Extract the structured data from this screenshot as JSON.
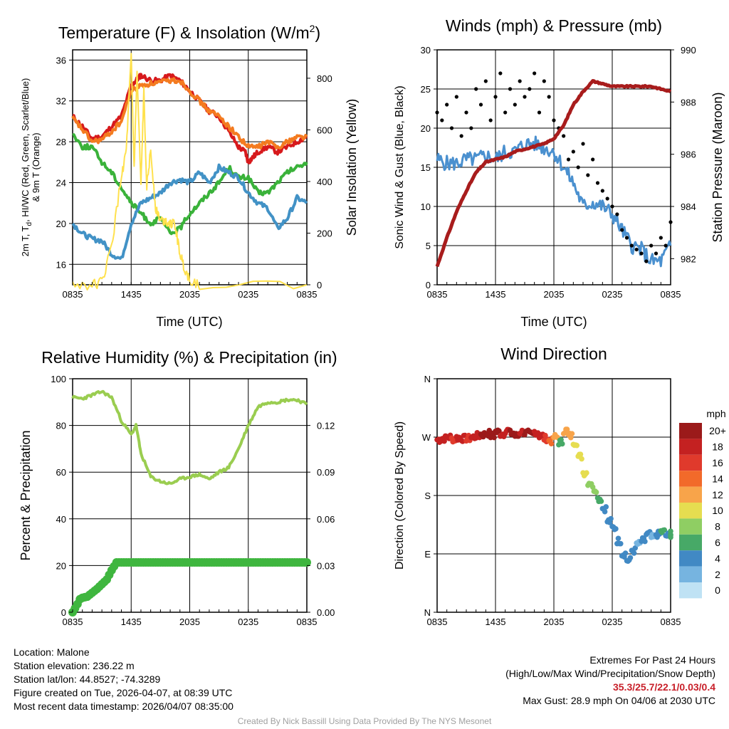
{
  "chart_data": [
    {
      "id": "temp",
      "type": "line",
      "title": "Temperature (F) & Insolation (W/m",
      "title_sup": "2",
      "title_end": ")",
      "xlabel": "Time (UTC)",
      "ylabel": [
        "2m T, T",
        "d",
        ", HI/WC (Red, Green, Scarlet/Blue)",
        "& 9m T (Orange)"
      ],
      "y2label": "Solar Insolation (Yellow)",
      "xticks": [
        "0835",
        "1435",
        "2035",
        "0235",
        "0835"
      ],
      "xlim": [
        0,
        24
      ],
      "ylim": [
        14,
        37
      ],
      "yticks": [
        16,
        20,
        24,
        28,
        32,
        36
      ],
      "y2lim": [
        0,
        910
      ],
      "y2ticks": [
        0,
        200,
        400,
        600,
        800
      ],
      "series": [
        {
          "name": "2m Temperature",
          "color": "#d7191c",
          "axis": "left",
          "x": [
            0,
            1,
            2,
            3,
            4,
            5,
            6,
            6.5,
            7,
            8,
            9,
            10,
            11,
            12,
            13,
            14,
            15,
            16,
            17,
            17.7,
            18,
            18.5,
            19,
            20,
            21,
            22,
            23,
            24
          ],
          "y": [
            30.5,
            29.5,
            28.3,
            28.5,
            29.5,
            30.5,
            33.5,
            34,
            34.5,
            34,
            34,
            34.5,
            34,
            33,
            32,
            31,
            30.5,
            29,
            27.5,
            27,
            26,
            26.5,
            27,
            27.5,
            27,
            27.5,
            28,
            28.5
          ]
        },
        {
          "name": "9m Temperature",
          "color": "#f47b20",
          "axis": "left",
          "x": [
            0,
            1,
            2,
            3,
            4,
            5,
            6,
            7,
            8,
            9,
            10,
            11,
            12,
            13,
            14,
            15,
            16,
            17,
            18,
            19,
            20,
            21,
            22,
            23,
            24
          ],
          "y": [
            30.3,
            29.2,
            28,
            28.2,
            29,
            30,
            33,
            33.5,
            33.7,
            33.8,
            34,
            34,
            33,
            32,
            31,
            30.5,
            29.5,
            28.5,
            27.5,
            27.5,
            28,
            27.5,
            28,
            28.5,
            28.5
          ]
        },
        {
          "name": "Dewpoint",
          "color": "#3ab23a",
          "axis": "left",
          "x": [
            0,
            1,
            2,
            3,
            4,
            5,
            6,
            7,
            8,
            9,
            10,
            11,
            12,
            13,
            14,
            15,
            16,
            17,
            18,
            19,
            20,
            21,
            22,
            23,
            24
          ],
          "y": [
            28.8,
            27.5,
            27.5,
            26,
            25,
            23.5,
            22,
            21,
            20,
            20.5,
            19,
            19.5,
            21,
            22,
            23,
            24,
            25.5,
            24.5,
            24.5,
            23,
            23,
            24,
            25,
            25.5,
            26
          ]
        },
        {
          "name": "Heat Index / Wind Chill",
          "color": "#4292c6",
          "axis": "left",
          "x": [
            0,
            1,
            2,
            3,
            4,
            5,
            6,
            7,
            8,
            9,
            10,
            11,
            12,
            13,
            14,
            15,
            16,
            17,
            18,
            19,
            20,
            21,
            22,
            23,
            24
          ],
          "y": [
            20,
            19,
            18.5,
            18.3,
            17,
            16.5,
            20,
            22,
            22.5,
            23,
            24,
            24.3,
            24,
            25,
            24,
            25.5,
            25,
            24.5,
            23,
            22,
            21.5,
            19.5,
            20.5,
            22.5,
            22
          ]
        },
        {
          "name": "Solar Insolation",
          "color": "#ffe14d",
          "axis": "right",
          "x": [
            0,
            2,
            3,
            4,
            5,
            5.5,
            6,
            6.3,
            6.6,
            7,
            7.3,
            7.6,
            8,
            8.5,
            9,
            9.5,
            10,
            10.5,
            11,
            11.5,
            12,
            13,
            24
          ],
          "y": [
            0,
            0,
            10,
            150,
            420,
            520,
            880,
            450,
            820,
            380,
            750,
            380,
            520,
            300,
            250,
            250,
            240,
            230,
            120,
            60,
            20,
            0,
            0
          ]
        }
      ]
    },
    {
      "id": "wind",
      "type": "line",
      "title": "Winds (mph) & Pressure (mb)",
      "xlabel": "Time (UTC)",
      "ylabel": "Sonic Wind & Gust (Blue, Black)",
      "y2label": "Station Pressure (Maroon)",
      "xticks": [
        "0835",
        "1435",
        "2035",
        "0235",
        "0835"
      ],
      "xlim": [
        0,
        24
      ],
      "ylim": [
        0,
        30
      ],
      "yticks": [
        0,
        5,
        10,
        15,
        20,
        25,
        30
      ],
      "y2lim": [
        981,
        990
      ],
      "y2ticks": [
        982,
        984,
        986,
        988,
        990
      ],
      "series": [
        {
          "name": "Sonic Wind",
          "color": "#4a90cf",
          "axis": "left",
          "type": "line",
          "x": [
            0,
            1,
            2,
            3,
            4,
            5,
            6,
            7,
            8,
            9,
            10,
            11,
            12,
            13,
            14,
            15,
            16,
            17,
            18,
            19,
            20,
            21,
            22,
            23,
            24
          ],
          "y": [
            16,
            15.5,
            15.5,
            16,
            16,
            16.5,
            16,
            17,
            17,
            18,
            18,
            17.5,
            17,
            15,
            13,
            10,
            10.5,
            10,
            9,
            7,
            5,
            4.5,
            3,
            3,
            5
          ]
        },
        {
          "name": "Gust",
          "color": "#000000",
          "axis": "left",
          "type": "scatter",
          "x": [
            0,
            0.5,
            1,
            1.5,
            2,
            2.5,
            3,
            3.5,
            4,
            4.5,
            5,
            5.5,
            6,
            6.5,
            7,
            7.5,
            8,
            8.5,
            9,
            9.5,
            10,
            10.5,
            11,
            11.5,
            12,
            12.5,
            13,
            13.5,
            14,
            14.5,
            15,
            15.5,
            16,
            16.5,
            17,
            17.5,
            18,
            18.5,
            19,
            19.5,
            20,
            20.5,
            21,
            21.5,
            22,
            22.5,
            23,
            23.5,
            24
          ],
          "y": [
            22,
            21,
            23,
            20,
            24,
            19,
            22,
            20,
            25,
            23,
            26,
            21,
            24,
            27,
            22,
            25,
            23,
            26,
            24,
            25,
            27,
            22,
            26,
            24,
            21,
            20,
            19,
            16,
            17,
            15,
            18,
            14,
            16,
            13,
            12,
            11,
            10,
            9,
            7,
            6,
            5,
            4.5,
            4,
            3,
            5,
            4,
            6,
            5,
            8
          ]
        },
        {
          "name": "Station Pressure",
          "color": "#a81c1c",
          "axis": "right",
          "type": "line",
          "x": [
            0,
            1,
            2,
            3,
            4,
            5,
            6,
            7,
            8,
            9,
            10,
            11,
            12,
            13,
            14,
            15,
            16,
            17,
            18,
            19,
            20,
            21,
            22,
            23,
            24
          ],
          "y": [
            981.7,
            982.8,
            983.8,
            984.6,
            985.3,
            985.7,
            985.8,
            985.9,
            986.1,
            986.2,
            986.3,
            986.4,
            986.6,
            987.1,
            987.9,
            988.4,
            988.8,
            988.7,
            988.6,
            988.6,
            988.6,
            988.6,
            988.6,
            988.5,
            988.4
          ]
        }
      ]
    },
    {
      "id": "rh",
      "type": "line",
      "title": "Relative Humidity (%) & Precipitation (in)",
      "ylabel": "Percent & Precipitation",
      "xticks": [
        "0835",
        "1435",
        "2035",
        "0235",
        "0835"
      ],
      "xlim": [
        0,
        24
      ],
      "ylim": [
        0,
        100
      ],
      "yticks": [
        0,
        20,
        40,
        60,
        80,
        100
      ],
      "y2lim": [
        0,
        0.15
      ],
      "y2ticks": [
        "0.00",
        "0.03",
        "0.06",
        "0.09",
        "0.12"
      ],
      "series": [
        {
          "name": "Relative Humidity",
          "color": "#9acd50",
          "axis": "left",
          "x": [
            0,
            1,
            2,
            3,
            4,
            5,
            6,
            6.5,
            7,
            8,
            9,
            10,
            11,
            12,
            13,
            14,
            15,
            16,
            17,
            18,
            19,
            20,
            21,
            22,
            23,
            24
          ],
          "y": [
            92,
            91.5,
            93,
            94.5,
            92,
            82,
            76,
            80,
            68,
            58,
            56,
            55,
            57,
            58,
            59,
            57,
            60,
            62,
            70,
            80,
            88,
            90,
            90,
            91,
            91,
            89
          ]
        },
        {
          "name": "Precipitation",
          "color": "#3fb63f",
          "axis": "right",
          "x": [
            0,
            0.4,
            0.8,
            1.5,
            2.5,
            3,
            3.5,
            4,
            4.5,
            24
          ],
          "y": [
            0,
            0.004,
            0.009,
            0.01,
            0.015,
            0.018,
            0.021,
            0.027,
            0.032,
            0.032
          ]
        }
      ]
    },
    {
      "id": "dir",
      "type": "scatter",
      "title": "Wind Direction",
      "ylabel": "Direction (Colored By Speed)",
      "xticks": [
        "0835",
        "1435",
        "2035",
        "0235",
        "0835"
      ],
      "xlim": [
        0,
        24
      ],
      "ylim": [
        0,
        360
      ],
      "yticks": [
        "N",
        "E",
        "S",
        "W",
        "N"
      ],
      "ytick_values": [
        0,
        90,
        180,
        270,
        360
      ],
      "colorbar": {
        "title": "mph",
        "labels": [
          "20+",
          "18",
          "16",
          "14",
          "12",
          "10",
          "8",
          "6",
          "4",
          "2",
          "0"
        ],
        "colors": [
          "#9b1a1a",
          "#c42121",
          "#e03a2c",
          "#f26a2a",
          "#f8a44a",
          "#e6dd50",
          "#8fce63",
          "#47a967",
          "#4189c4",
          "#76b4e0",
          "#bfe2f4"
        ]
      },
      "points": [
        {
          "x": 0,
          "dir": 266,
          "speed": 17
        },
        {
          "x": 0.5,
          "dir": 268,
          "speed": 18
        },
        {
          "x": 1,
          "dir": 270,
          "speed": 17
        },
        {
          "x": 1.5,
          "dir": 267,
          "speed": 16
        },
        {
          "x": 2,
          "dir": 269,
          "speed": 18
        },
        {
          "x": 2.5,
          "dir": 268,
          "speed": 17
        },
        {
          "x": 3,
          "dir": 268,
          "speed": 16
        },
        {
          "x": 3.5,
          "dir": 270,
          "speed": 18
        },
        {
          "x": 4,
          "dir": 272,
          "speed": 17
        },
        {
          "x": 4.5,
          "dir": 274,
          "speed": 19
        },
        {
          "x": 5,
          "dir": 276,
          "speed": 20
        },
        {
          "x": 5.5,
          "dir": 272,
          "speed": 19
        },
        {
          "x": 6,
          "dir": 278,
          "speed": 20
        },
        {
          "x": 6.5,
          "dir": 275,
          "speed": 18
        },
        {
          "x": 7,
          "dir": 280,
          "speed": 17
        },
        {
          "x": 7.5,
          "dir": 276,
          "speed": 19
        },
        {
          "x": 8,
          "dir": 272,
          "speed": 20
        },
        {
          "x": 8.5,
          "dir": 278,
          "speed": 18
        },
        {
          "x": 9,
          "dir": 276,
          "speed": 19
        },
        {
          "x": 9.5,
          "dir": 274,
          "speed": 20
        },
        {
          "x": 10,
          "dir": 278,
          "speed": 18
        },
        {
          "x": 10.5,
          "dir": 272,
          "speed": 17
        },
        {
          "x": 11,
          "dir": 268,
          "speed": 16
        },
        {
          "x": 11.5,
          "dir": 264,
          "speed": 13
        },
        {
          "x": 12,
          "dir": 270,
          "speed": 12
        },
        {
          "x": 12.5,
          "dir": 262,
          "speed": 6
        },
        {
          "x": 13,
          "dir": 280,
          "speed": 11
        },
        {
          "x": 13.5,
          "dir": 272,
          "speed": 12
        },
        {
          "x": 14,
          "dir": 262,
          "speed": 9
        },
        {
          "x": 14.5,
          "dir": 240,
          "speed": 10
        },
        {
          "x": 15,
          "dir": 215,
          "speed": 9
        },
        {
          "x": 15.5,
          "dir": 200,
          "speed": 8
        },
        {
          "x": 16,
          "dir": 190,
          "speed": 7
        },
        {
          "x": 16.5,
          "dir": 175,
          "speed": 6
        },
        {
          "x": 17,
          "dir": 160,
          "speed": 4
        },
        {
          "x": 17.5,
          "dir": 140,
          "speed": 3
        },
        {
          "x": 18,
          "dir": 130,
          "speed": 4
        },
        {
          "x": 18.5,
          "dir": 110,
          "speed": 4
        },
        {
          "x": 19,
          "dir": 90,
          "speed": 3
        },
        {
          "x": 19.5,
          "dir": 80,
          "speed": 4
        },
        {
          "x": 20,
          "dir": 95,
          "speed": 3
        },
        {
          "x": 20.5,
          "dir": 105,
          "speed": 2
        },
        {
          "x": 21,
          "dir": 110,
          "speed": 3
        },
        {
          "x": 21.5,
          "dir": 120,
          "speed": 4
        },
        {
          "x": 22,
          "dir": 115,
          "speed": 2
        },
        {
          "x": 22.5,
          "dir": 120,
          "speed": 3
        },
        {
          "x": 23,
          "dir": 124,
          "speed": 6
        },
        {
          "x": 23.5,
          "dir": 118,
          "speed": 3
        },
        {
          "x": 24,
          "dir": 120,
          "speed": 6
        }
      ]
    }
  ],
  "info": {
    "location": "Location: Malone",
    "elevation": "Station elevation: 236.22 m",
    "latlon": "Station lat/lon: 44.8527; -74.3289",
    "created": "Figure created on Tue, 2026-04-07, at 08:39 UTC",
    "recent": "Most recent data timestamp: 2026/04/07 08:35:00"
  },
  "extremes": {
    "title": "Extremes For Past 24 Hours",
    "legend": "(High/Low/Max Wind/Precipitation/Snow Depth)",
    "values": "35.3/25.7/22.1/0.03/0.4",
    "gust": "Max Gust: 28.9 mph On 04/06 at 2030 UTC"
  },
  "credit": "Created By Nick Bassill Using Data Provided By The NYS Mesonet"
}
